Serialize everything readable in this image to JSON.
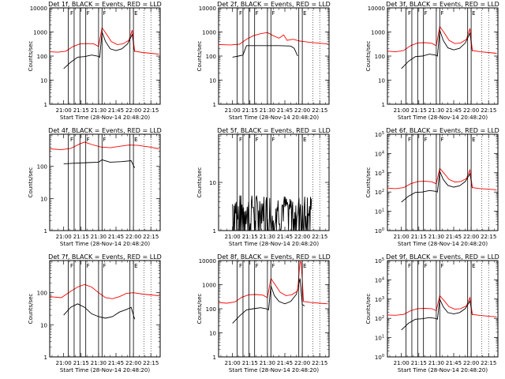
{
  "figure": {
    "xlabel": "Start Time (28-Nov-14 20:48:20)",
    "ylabel": "Counts/sec",
    "x_tick_labels": [
      "21:00",
      "21:15",
      "21:30",
      "21:45",
      "22:00",
      "22:15"
    ],
    "flag_letters": [
      "F",
      "F",
      "F",
      "E"
    ],
    "colors": {
      "events": "#000000",
      "lld": "#ff0000",
      "frame": "#000000",
      "background": "#ffffff"
    },
    "legend_text": "BLACK = Events, RED = LLD"
  },
  "chart_data": [
    {
      "type": "line",
      "title": "Det 1f, BLACK = Events, RED = LLD",
      "xlabel": "Start Time (28-Nov-14 20:48:20)",
      "ylabel": "Counts/sec",
      "scale": "log",
      "ylim": [
        1,
        10000
      ],
      "xlim": [
        "20:48",
        "22:23"
      ],
      "y_tick_labels": [
        "1",
        "10",
        "100",
        "1000",
        "10000"
      ],
      "series": [
        {
          "name": "Events",
          "x": [
            "21:00",
            "21:06",
            "21:12",
            "21:18",
            "21:24",
            "21:29",
            "21:31",
            "21:33",
            "21:36",
            "21:40",
            "21:45",
            "21:50",
            "21:55",
            "21:59",
            "22:01"
          ],
          "values": [
            30,
            55,
            90,
            95,
            110,
            100,
            90,
            1000,
            400,
            200,
            170,
            200,
            320,
            800,
            150
          ]
        },
        {
          "name": "LLD",
          "x": [
            "20:48",
            "20:55",
            "21:02",
            "21:08",
            "21:14",
            "21:20",
            "21:26",
            "21:30",
            "21:33",
            "21:37",
            "21:41",
            "21:46",
            "21:51",
            "21:56",
            "21:59",
            "22:01",
            "22:08",
            "22:15",
            "22:22"
          ],
          "values": [
            150,
            145,
            160,
            250,
            320,
            330,
            320,
            250,
            1500,
            800,
            400,
            300,
            320,
            450,
            1200,
            160,
            140,
            130,
            120
          ]
        }
      ]
    },
    {
      "type": "line",
      "title": "Det 2f, BLACK = Events, RED = LLD",
      "xlabel": "Start Time (28-Nov-14 20:48:20)",
      "ylabel": "Counts/sec",
      "scale": "log",
      "ylim": [
        1,
        10000
      ],
      "xlim": [
        "20:48",
        "22:23"
      ],
      "y_tick_labels": [
        "1",
        "10",
        "100",
        "1000",
        "10000"
      ],
      "series": [
        {
          "name": "Events",
          "x": [
            "21:00",
            "21:05",
            "21:09",
            "21:12",
            "21:20",
            "21:30",
            "21:40",
            "21:50",
            "21:53",
            "21:55",
            "21:56"
          ],
          "values": [
            90,
            100,
            110,
            270,
            270,
            270,
            270,
            260,
            210,
            130,
            100
          ]
        },
        {
          "name": "LLD",
          "x": [
            "20:48",
            "20:58",
            "21:06",
            "21:12",
            "21:18",
            "21:24",
            "21:30",
            "21:35",
            "21:40",
            "21:44",
            "21:47",
            "21:52",
            "21:58",
            "22:05",
            "22:15",
            "22:22"
          ],
          "values": [
            300,
            290,
            310,
            500,
            700,
            850,
            950,
            700,
            550,
            750,
            450,
            500,
            420,
            380,
            340,
            320
          ]
        }
      ]
    },
    {
      "type": "line",
      "title": "Det 3f, BLACK = Events, RED = LLD",
      "xlabel": "Start Time (28-Nov-14 20:48:20)",
      "ylabel": "Counts/sec",
      "scale": "log",
      "ylim": [
        1,
        10000
      ],
      "xlim": [
        "20:48",
        "22:23"
      ],
      "y_tick_labels": [
        "1",
        "10",
        "100",
        "1000",
        "10000"
      ],
      "series": [
        {
          "name": "Events",
          "x": [
            "21:00",
            "21:06",
            "21:12",
            "21:18",
            "21:24",
            "21:29",
            "21:31",
            "21:33",
            "21:36",
            "21:40",
            "21:45",
            "21:50",
            "21:55",
            "21:59",
            "22:01"
          ],
          "values": [
            30,
            60,
            95,
            100,
            120,
            110,
            100,
            1200,
            450,
            220,
            180,
            210,
            350,
            900,
            160
          ]
        },
        {
          "name": "LLD",
          "x": [
            "20:48",
            "20:55",
            "21:02",
            "21:08",
            "21:14",
            "21:20",
            "21:26",
            "21:30",
            "21:33",
            "21:37",
            "21:41",
            "21:46",
            "21:51",
            "21:56",
            "21:59",
            "22:01",
            "22:08",
            "22:15",
            "22:22"
          ],
          "values": [
            160,
            150,
            170,
            270,
            350,
            360,
            340,
            270,
            1700,
            900,
            450,
            330,
            350,
            500,
            1400,
            170,
            150,
            140,
            130
          ]
        }
      ]
    },
    {
      "type": "line",
      "title": "Det 4f, BLACK = Events, RED = LLD",
      "xlabel": "Start Time (28-Nov-14 20:48:20)",
      "ylabel": "Counts/sec",
      "scale": "log",
      "ylim": [
        1,
        1000
      ],
      "xlim": [
        "20:48",
        "22:23"
      ],
      "y_tick_labels": [
        "1",
        "10",
        "100"
      ],
      "series": [
        {
          "name": "Events",
          "x": [
            "21:00",
            "21:10",
            "21:20",
            "21:30",
            "21:33",
            "21:40",
            "21:50",
            "21:58",
            "22:01"
          ],
          "values": [
            120,
            125,
            130,
            135,
            160,
            135,
            140,
            150,
            90
          ]
        },
        {
          "name": "LLD",
          "x": [
            "20:48",
            "20:58",
            "21:06",
            "21:14",
            "21:18",
            "21:24",
            "21:32",
            "21:40",
            "21:48",
            "21:56",
            "22:04",
            "22:14",
            "22:22"
          ],
          "values": [
            350,
            330,
            360,
            500,
            570,
            480,
            400,
            380,
            420,
            460,
            450,
            400,
            350
          ]
        }
      ]
    },
    {
      "type": "line",
      "title": "Det 5f, BLACK = Events, RED = LLD",
      "xlabel": "Start Time (28-Nov-14 20:48:20)",
      "ylabel": "Counts/sec",
      "scale": "log",
      "ylim": [
        1,
        100
      ],
      "xlim": [
        "20:48",
        "22:23"
      ],
      "y_tick_labels": [
        "1",
        "10"
      ],
      "series": [
        {
          "name": "Events",
          "x": [
            "21:00",
            "21:10",
            "21:20",
            "21:30",
            "21:40",
            "21:50",
            "22:00",
            "22:08"
          ],
          "values": [
            1.5,
            3,
            3.5,
            3,
            3.5,
            2.5,
            2,
            1
          ]
        }
      ]
    },
    {
      "type": "line",
      "title": "Det 6f, BLACK = Events, RED = LLD",
      "xlabel": "Start Time (28-Nov-14 20:48:20)",
      "ylabel": "Counts/sec",
      "scale": "log",
      "ylim": [
        1,
        100000
      ],
      "xlim": [
        "20:48",
        "22:23"
      ],
      "y_tick_labels": [
        "10^0",
        "10^1",
        "10^2",
        "10^3",
        "10^4",
        "10^5"
      ],
      "series": [
        {
          "name": "Events",
          "x": [
            "21:00",
            "21:06",
            "21:12",
            "21:18",
            "21:24",
            "21:29",
            "21:31",
            "21:33",
            "21:36",
            "21:40",
            "21:45",
            "21:50",
            "21:55",
            "21:59",
            "22:01"
          ],
          "values": [
            30,
            60,
            95,
            100,
            120,
            110,
            100,
            1200,
            450,
            220,
            180,
            210,
            350,
            900,
            160
          ]
        },
        {
          "name": "LLD",
          "x": [
            "20:48",
            "20:55",
            "21:02",
            "21:08",
            "21:14",
            "21:20",
            "21:26",
            "21:30",
            "21:33",
            "21:37",
            "21:41",
            "21:46",
            "21:51",
            "21:56",
            "21:59",
            "22:01",
            "22:08",
            "22:15",
            "22:22"
          ],
          "values": [
            160,
            150,
            170,
            270,
            350,
            360,
            340,
            270,
            1700,
            900,
            450,
            330,
            350,
            500,
            1400,
            170,
            150,
            140,
            130
          ]
        }
      ]
    },
    {
      "type": "line",
      "title": "Det 7f, BLACK = Events, RED = LLD",
      "xlabel": "Start Time (28-Nov-14 20:48:20)",
      "ylabel": "Counts/sec",
      "scale": "log",
      "ylim": [
        1,
        1000
      ],
      "xlim": [
        "20:48",
        "22:23"
      ],
      "y_tick_labels": [
        "1",
        "10",
        "100"
      ],
      "series": [
        {
          "name": "Events",
          "x": [
            "21:00",
            "21:06",
            "21:12",
            "21:18",
            "21:24",
            "21:30",
            "21:36",
            "21:42",
            "21:48",
            "21:54",
            "21:58",
            "22:01"
          ],
          "values": [
            20,
            35,
            45,
            35,
            22,
            18,
            16,
            18,
            25,
            30,
            35,
            15
          ]
        },
        {
          "name": "LLD",
          "x": [
            "20:48",
            "20:58",
            "21:06",
            "21:12",
            "21:18",
            "21:24",
            "21:30",
            "21:36",
            "21:42",
            "21:48",
            "21:54",
            "22:00",
            "22:08",
            "22:15",
            "22:22"
          ],
          "values": [
            75,
            70,
            110,
            150,
            180,
            150,
            100,
            70,
            65,
            75,
            95,
            100,
            90,
            85,
            80
          ]
        }
      ]
    },
    {
      "type": "line",
      "title": "Det 8f, BLACK = Events, RED = LLD",
      "xlabel": "Start Time (28-Nov-14 20:48:20)",
      "ylabel": "Counts/sec",
      "scale": "log",
      "ylim": [
        1,
        10000
      ],
      "xlim": [
        "20:48",
        "22:23"
      ],
      "y_tick_labels": [
        "1",
        "10",
        "100",
        "1000",
        "10000"
      ],
      "series": [
        {
          "name": "Events",
          "x": [
            "21:00",
            "21:06",
            "21:12",
            "21:18",
            "21:24",
            "21:29",
            "21:31",
            "21:33",
            "21:36",
            "21:40",
            "21:45",
            "21:50",
            "21:55",
            "21:58",
            "22:00",
            "22:02"
          ],
          "values": [
            25,
            50,
            90,
            100,
            110,
            100,
            90,
            900,
            350,
            200,
            160,
            200,
            400,
            1800,
            150,
            130
          ]
        },
        {
          "name": "LLD",
          "x": [
            "20:48",
            "20:55",
            "21:02",
            "21:08",
            "21:14",
            "21:20",
            "21:26",
            "21:30",
            "21:33",
            "21:37",
            "21:41",
            "21:46",
            "21:51",
            "21:56",
            "21:58",
            "21:59",
            "22:00",
            "22:01",
            "22:08",
            "22:15",
            "22:22"
          ],
          "values": [
            180,
            170,
            190,
            300,
            380,
            390,
            370,
            290,
            1800,
            950,
            480,
            350,
            380,
            550,
            9000,
            8500,
            1600,
            200,
            180,
            170,
            160
          ]
        }
      ]
    },
    {
      "type": "line",
      "title": "Det 9f, BLACK = Events, RED = LLD",
      "xlabel": "Start Time (28-Nov-14 20:48:20)",
      "ylabel": "Counts/sec",
      "scale": "log",
      "ylim": [
        1,
        100000
      ],
      "xlim": [
        "20:48",
        "22:23"
      ],
      "y_tick_labels": [
        "10^0",
        "10^1",
        "10^2",
        "10^3",
        "10^4",
        "10^5"
      ],
      "series": [
        {
          "name": "Events",
          "x": [
            "21:00",
            "21:06",
            "21:12",
            "21:18",
            "21:24",
            "21:29",
            "21:31",
            "21:33",
            "21:36",
            "21:40",
            "21:45",
            "21:50",
            "21:55",
            "21:59",
            "22:01"
          ],
          "values": [
            25,
            55,
            90,
            95,
            110,
            100,
            90,
            1000,
            400,
            200,
            170,
            200,
            320,
            800,
            150
          ]
        },
        {
          "name": "LLD",
          "x": [
            "20:48",
            "20:55",
            "21:02",
            "21:08",
            "21:14",
            "21:20",
            "21:26",
            "21:30",
            "21:33",
            "21:37",
            "21:41",
            "21:46",
            "21:51",
            "21:56",
            "21:59",
            "22:01",
            "22:08",
            "22:15",
            "22:22"
          ],
          "values": [
            150,
            145,
            160,
            250,
            320,
            330,
            320,
            250,
            1500,
            800,
            400,
            300,
            320,
            450,
            1200,
            160,
            140,
            130,
            120
          ]
        }
      ]
    }
  ]
}
